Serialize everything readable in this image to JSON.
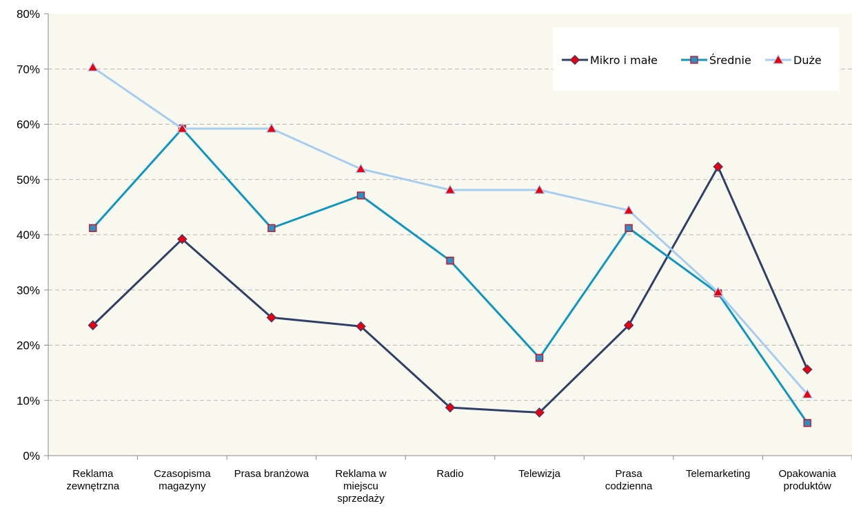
{
  "chart_data": {
    "type": "line",
    "title": "",
    "xlabel": "",
    "ylabel": "",
    "ylim": [
      0,
      0.8
    ],
    "yticks": [
      "0%",
      "10%",
      "20%",
      "30%",
      "40%",
      "50%",
      "60%",
      "70%",
      "80%"
    ],
    "grid": "horizontal dashed",
    "legend_position": "top-right",
    "categories": [
      [
        "Reklama",
        "zewnętrzna"
      ],
      [
        "Czasopisma",
        "magazyny"
      ],
      [
        "Prasa branżowa"
      ],
      [
        "Reklama w",
        "miejscu",
        "sprzedaży"
      ],
      [
        "Radio"
      ],
      [
        "Telewizja"
      ],
      [
        "Prasa",
        "codzienna"
      ],
      [
        "Telemarketing"
      ],
      [
        "Opakowania",
        "produktów"
      ]
    ],
    "series": [
      {
        "name": "Mikro i małe",
        "color": "#2f3f66",
        "marker": "diamond",
        "marker_fill": "#e8000d",
        "values": [
          0.236,
          0.392,
          0.25,
          0.234,
          0.087,
          0.078,
          0.236,
          0.523,
          0.156
        ]
      },
      {
        "name": "Średnie",
        "color": "#0e95c0",
        "marker": "square",
        "marker_fill": "#2b8fc7",
        "values": [
          0.412,
          0.592,
          0.412,
          0.471,
          0.353,
          0.177,
          0.412,
          0.294,
          0.059
        ]
      },
      {
        "name": "Duże",
        "color": "#a6cdf0",
        "marker": "triangle",
        "marker_fill": "#e8000d",
        "values": [
          0.703,
          0.592,
          0.592,
          0.519,
          0.481,
          0.481,
          0.444,
          0.296,
          0.111
        ]
      }
    ],
    "plot_background": "#f8f8ee"
  }
}
